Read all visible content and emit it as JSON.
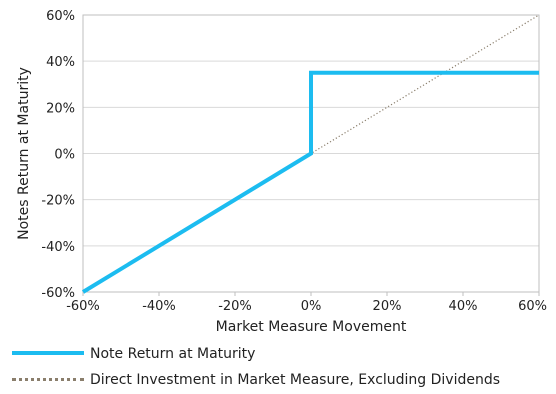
{
  "chart_data": {
    "type": "line",
    "title": "",
    "xlabel": "Market Measure Movement",
    "ylabel": "Notes Return at Maturity",
    "xlim": [
      -60,
      60
    ],
    "ylim": [
      -60,
      60
    ],
    "x_ticks": [
      -60,
      -40,
      -20,
      0,
      20,
      40,
      60
    ],
    "y_ticks": [
      -60,
      -40,
      -20,
      0,
      20,
      40,
      60
    ],
    "x_tick_labels": [
      "-60%",
      "-40%",
      "-20%",
      "0%",
      "20%",
      "40%",
      "60%"
    ],
    "y_tick_labels": [
      "-60%",
      "-40%",
      "-20%",
      "0%",
      "20%",
      "40%",
      "60%"
    ],
    "grid": "horizontal",
    "legend_position": "bottom",
    "series": [
      {
        "name": "Note Return at Maturity",
        "style": "solid",
        "color": "#1cbcf0",
        "points": [
          [
            -60,
            -60
          ],
          [
            0,
            0
          ],
          [
            0,
            35
          ],
          [
            60,
            35
          ]
        ]
      },
      {
        "name": "Direct Investment in Market Measure, Excluding Dividends",
        "style": "dotted",
        "color": "#8a7e6c",
        "points": [
          [
            -60,
            -60
          ],
          [
            60,
            60
          ]
        ]
      }
    ]
  },
  "colors": {
    "note_line": "#1cbcf0",
    "direct_line": "#8a7e6c",
    "gridline": "#d9d9d9",
    "axis": "#bfbfbf"
  }
}
